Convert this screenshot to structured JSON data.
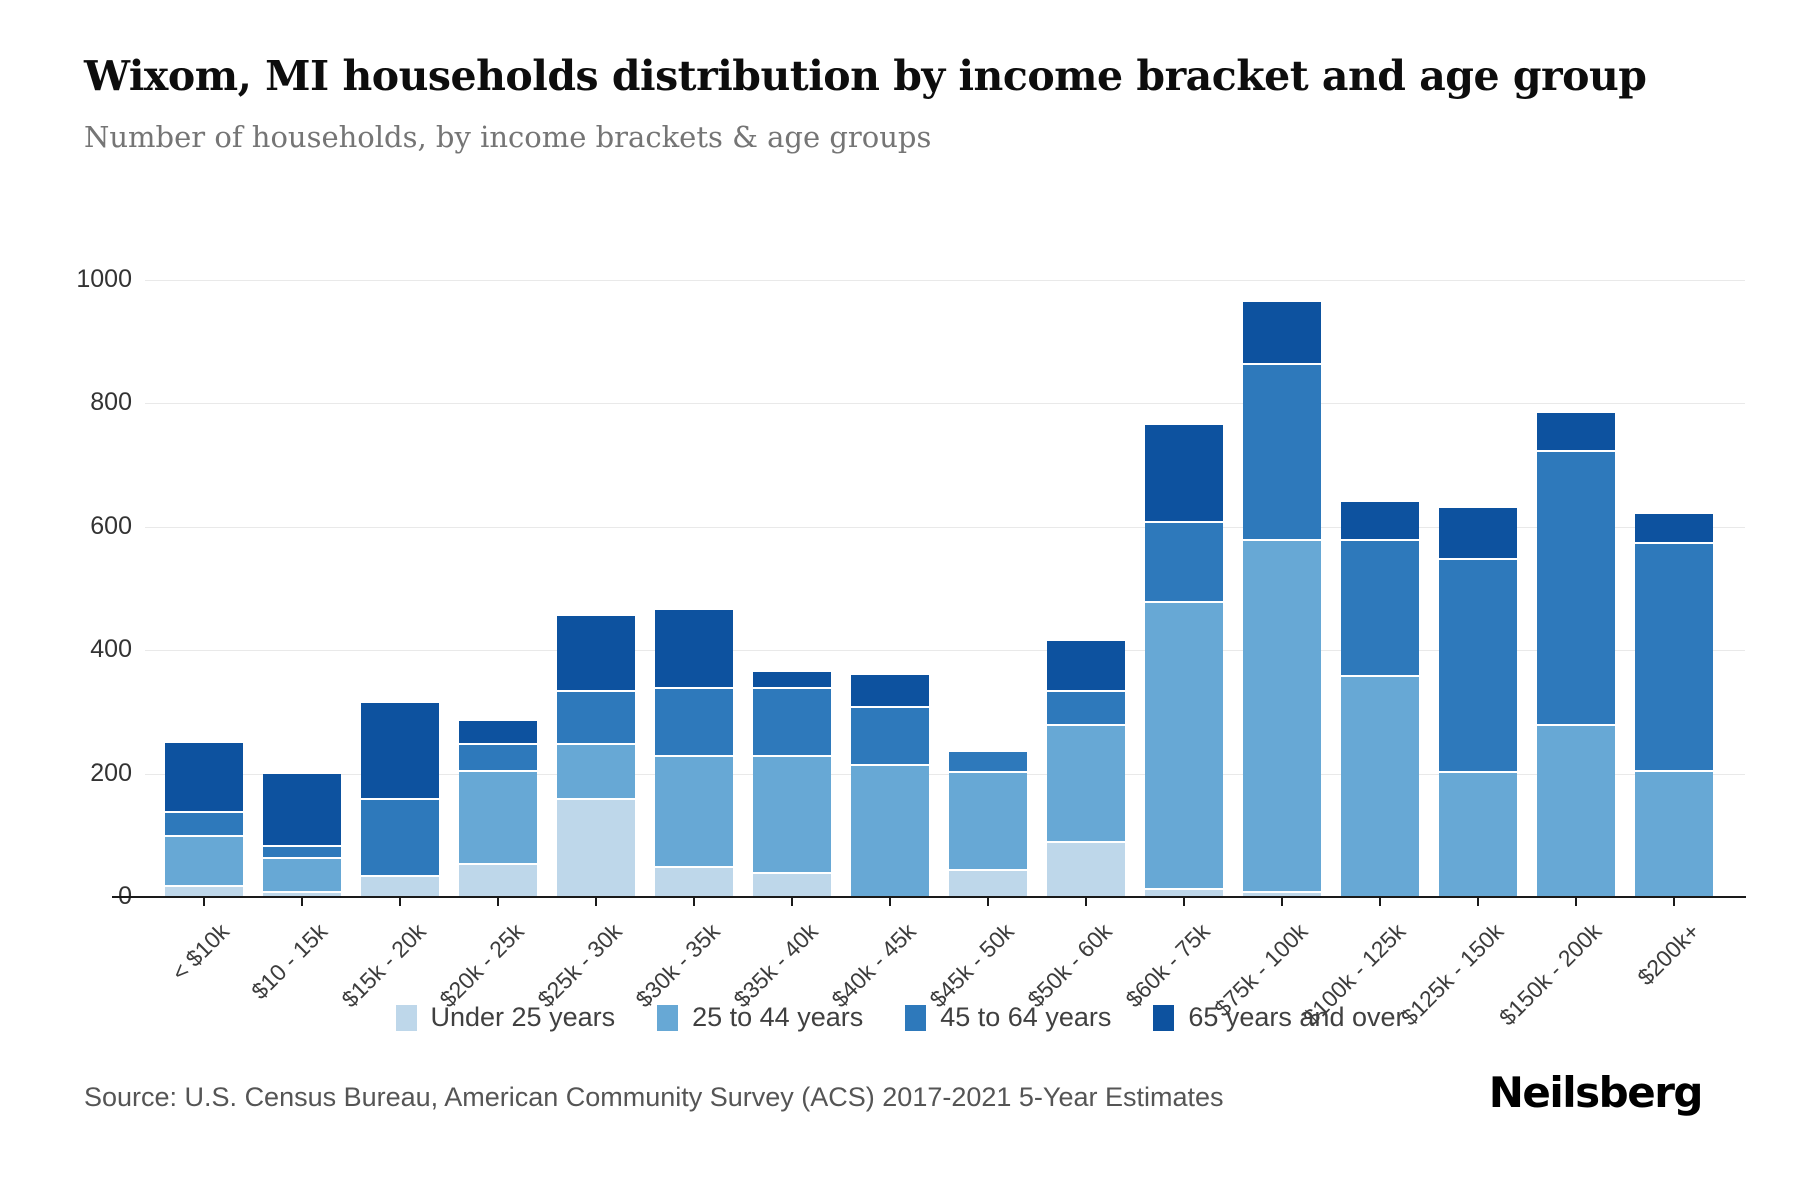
{
  "title": "Wixom, MI households distribution by income bracket and age group",
  "subtitle": "Number of households, by income brackets & age groups",
  "source": "Source: U.S. Census Bureau, American Community Survey (ACS) 2017-2021 5-Year Estimates",
  "brand": "Neilsberg",
  "colors": {
    "under_25": "#bed7ea",
    "age_25_44": "#67a8d5",
    "age_45_64": "#2e79bb",
    "age_65_over": "#0d529f"
  },
  "chart_data": {
    "type": "bar",
    "stacked": true,
    "title": "Wixom, MI households distribution by income bracket and age group",
    "xlabel": "",
    "ylabel": "Number of households",
    "ylim": [
      0,
      1000
    ],
    "yticks": [
      0,
      200,
      400,
      600,
      800,
      1000
    ],
    "grid": true,
    "legend_position": "bottom",
    "categories": [
      "< $10k",
      "$10 - 15k",
      "$15k - 20k",
      "$20k - 25k",
      "$25k - 30k",
      "$30k - 35k",
      "$35k - 40k",
      "$40k - 45k",
      "$45k - 50k",
      "$50k - 60k",
      "$60k - 75k",
      "$75k - 100k",
      "$100k - 125k",
      "$125k - 150k",
      "$150k - 200k",
      "$200k+"
    ],
    "series": [
      {
        "name": "Under 25 years",
        "key": "under_25",
        "color": "#bed7ea",
        "values": [
          20,
          10,
          35,
          55,
          160,
          50,
          40,
          0,
          45,
          90,
          15,
          10,
          0,
          0,
          0,
          0
        ]
      },
      {
        "name": "25 to 44 years",
        "key": "age_25_44",
        "color": "#67a8d5",
        "values": [
          80,
          55,
          0,
          150,
          90,
          180,
          190,
          215,
          160,
          190,
          465,
          570,
          360,
          205,
          280,
          205
        ]
      },
      {
        "name": "45 to 64 years",
        "key": "age_45_64",
        "color": "#2e79bb",
        "values": [
          40,
          20,
          125,
          45,
          85,
          110,
          110,
          95,
          30,
          55,
          130,
          285,
          220,
          345,
          445,
          370
        ]
      },
      {
        "name": "65 years and over",
        "key": "age_65_over",
        "color": "#0d529f",
        "values": [
          110,
          115,
          155,
          35,
          120,
          125,
          25,
          50,
          0,
          80,
          155,
          100,
          60,
          80,
          60,
          45
        ]
      }
    ]
  }
}
